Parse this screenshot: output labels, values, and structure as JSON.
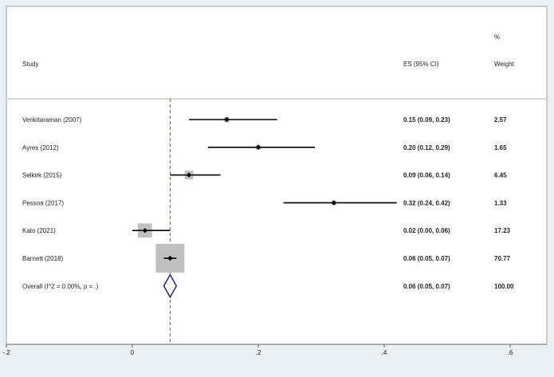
{
  "chart_data": {
    "type": "forest",
    "columns": {
      "study": "Study",
      "es": "ES (95% CI)",
      "weight_top": "%",
      "weight": "Weight"
    },
    "null_line": 0.06,
    "xlim": [
      -0.2,
      0.6
    ],
    "ticks": [
      {
        "value": -0.2,
        "label": "-.2"
      },
      {
        "value": 0,
        "label": "0"
      },
      {
        "value": 0.2,
        "label": ".2"
      },
      {
        "value": 0.4,
        "label": ".4"
      },
      {
        "value": 0.6,
        "label": ".6"
      }
    ],
    "studies": [
      {
        "label": "Venkitaraman (2007)",
        "es": 0.15,
        "lo": 0.09,
        "hi": 0.23,
        "es_text": "0.15 (0.09, 0.23)",
        "weight": 2.57,
        "weight_text": "2.57"
      },
      {
        "label": "Ayres (2012)",
        "es": 0.2,
        "lo": 0.12,
        "hi": 0.29,
        "es_text": "0.20 (0.12, 0.29)",
        "weight": 1.65,
        "weight_text": "1.65"
      },
      {
        "label": "Selkirk (2015)",
        "es": 0.09,
        "lo": 0.06,
        "hi": 0.14,
        "es_text": "0.09 (0.06, 0.14)",
        "weight": 6.45,
        "weight_text": "6.45"
      },
      {
        "label": "Pessoa (2017)",
        "es": 0.32,
        "lo": 0.24,
        "hi": 0.42,
        "es_text": "0.32 (0.24, 0.42)",
        "weight": 1.33,
        "weight_text": "1.33"
      },
      {
        "label": "Kato (2021)",
        "es": 0.02,
        "lo": 0.0,
        "hi": 0.06,
        "es_text": "0.02 (0.00, 0.06)",
        "weight": 17.23,
        "weight_text": "17.23"
      },
      {
        "label": "Barnett (2018)",
        "es": 0.06,
        "lo": 0.05,
        "hi": 0.07,
        "es_text": "0.06 (0.05, 0.07)",
        "weight": 70.77,
        "weight_text": "70.77"
      }
    ],
    "overall": {
      "label": "Overall  (I^2 = 0.00%, p = .)",
      "es": 0.06,
      "lo": 0.05,
      "hi": 0.07,
      "es_text": "0.06 (0.05, 0.07)",
      "weight_text": "100.00"
    },
    "colors": {
      "background": "#eaf0f3",
      "panel": "#ffffff",
      "box": "#c0c0c0",
      "ci_line": "#000000",
      "null_line": "#c0392b",
      "diamond": "#1f2a80"
    }
  }
}
